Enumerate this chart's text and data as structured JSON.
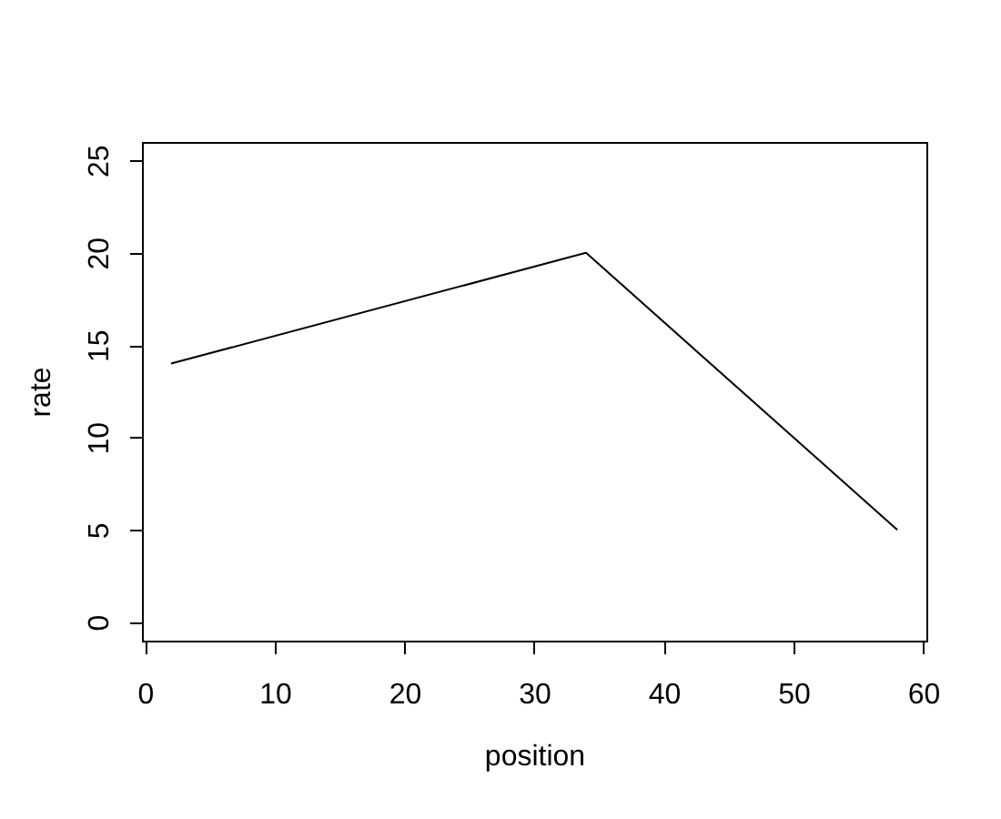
{
  "chart_data": {
    "type": "line",
    "x": [
      2,
      34,
      58
    ],
    "values": [
      14,
      20,
      5
    ],
    "color": "#000000",
    "xlabel": "position",
    "ylabel": "rate",
    "xlim": [
      -0.24,
      60.24
    ],
    "ylim": [
      -1,
      26
    ],
    "xticks": [
      0,
      10,
      20,
      30,
      40,
      50,
      60
    ],
    "yticks": [
      0,
      5,
      10,
      15,
      20,
      25
    ],
    "grid": false,
    "marker": "none",
    "line_style": "solid"
  }
}
